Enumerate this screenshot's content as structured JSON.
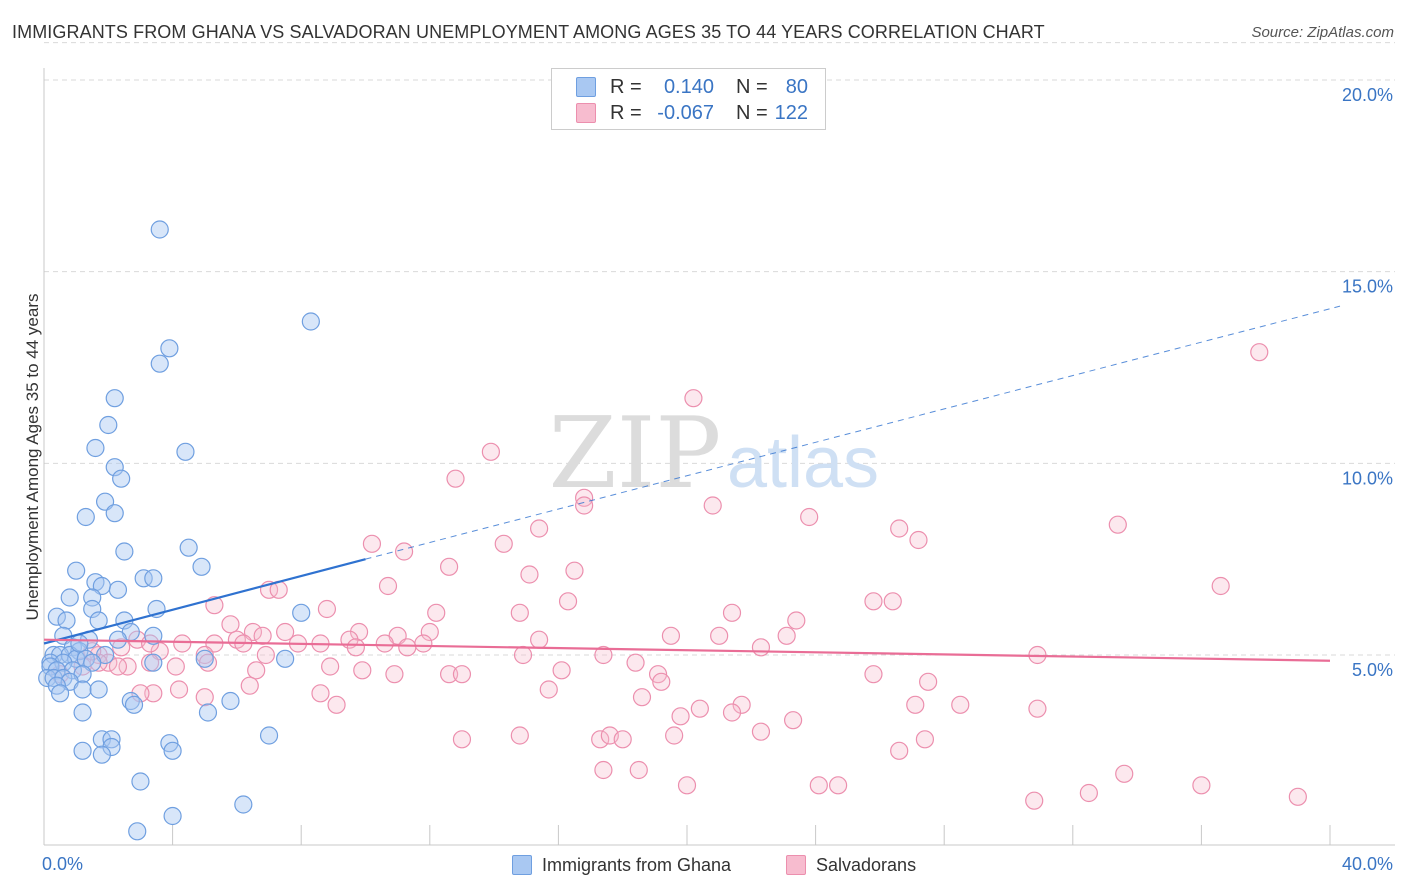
{
  "header": {
    "title": "IMMIGRANTS FROM GHANA VS SALVADORAN UNEMPLOYMENT AMONG AGES 35 TO 44 YEARS CORRELATION CHART",
    "source": "Source: ZipAtlas.com"
  },
  "watermark": {
    "zip": "ZIP",
    "atlas": "atlas"
  },
  "legend": {
    "rows": [
      {
        "r_label": "R =",
        "r_value": "0.140",
        "n_label": "N =",
        "n_value": "80"
      },
      {
        "r_label": "R =",
        "r_value": "-0.067",
        "n_label": "N =",
        "n_value": "122"
      }
    ],
    "series": [
      "Immigrants from Ghana",
      "Salvadorans"
    ]
  },
  "colors": {
    "ghana_fill": "#a9c8f2",
    "ghana_stroke": "#6f9fe0",
    "ghana_line": "#2f72d0",
    "salv_fill": "#f7bccf",
    "salv_stroke": "#ec8fae",
    "salv_line": "#e96d96",
    "value_text": "#3a75c4",
    "grid": "#d9d9d9"
  },
  "chart_data": {
    "type": "scatter",
    "title": "IMMIGRANTS FROM GHANA VS SALVADORAN UNEMPLOYMENT AMONG AGES 35 TO 44 YEARS CORRELATION CHART",
    "xlabel": "",
    "ylabel": "Unemployment Among Ages 35 to 44 years",
    "xlim": [
      0,
      40
    ],
    "ylim": [
      0,
      21
    ],
    "x_tick_labels": [
      {
        "value": 0,
        "label": "0.0%"
      },
      {
        "value": 40,
        "label": "40.0%"
      }
    ],
    "y_tick_labels": [
      {
        "value": 5,
        "label": "5.0%"
      },
      {
        "value": 10,
        "label": "10.0%"
      },
      {
        "value": 15,
        "label": "15.0%"
      },
      {
        "value": 20,
        "label": "20.0%"
      }
    ],
    "grid": true,
    "legend_position": "top-center",
    "series": [
      {
        "name": "Immigrants from Ghana",
        "r": 0.14,
        "n": 80,
        "trend": {
          "x0": 0,
          "y0": 5.3,
          "x1": 10,
          "y1": 7.5,
          "extend_to_x": 40,
          "extend_y": 14.1
        },
        "points": [
          [
            3.6,
            16.1
          ],
          [
            8.3,
            13.7
          ],
          [
            3.9,
            13.0
          ],
          [
            3.6,
            12.6
          ],
          [
            2.2,
            11.7
          ],
          [
            2.0,
            11.0
          ],
          [
            1.6,
            10.4
          ],
          [
            4.4,
            10.3
          ],
          [
            2.2,
            9.9
          ],
          [
            2.4,
            9.6
          ],
          [
            1.9,
            9.0
          ],
          [
            2.2,
            8.7
          ],
          [
            1.3,
            8.6
          ],
          [
            2.5,
            7.7
          ],
          [
            4.5,
            7.8
          ],
          [
            4.9,
            7.3
          ],
          [
            1.0,
            7.2
          ],
          [
            3.1,
            7.0
          ],
          [
            3.4,
            7.0
          ],
          [
            1.6,
            6.9
          ],
          [
            1.8,
            6.8
          ],
          [
            2.3,
            6.7
          ],
          [
            0.8,
            6.5
          ],
          [
            1.5,
            6.5
          ],
          [
            1.5,
            6.2
          ],
          [
            3.5,
            6.2
          ],
          [
            8.0,
            6.1
          ],
          [
            0.4,
            6.0
          ],
          [
            0.7,
            5.9
          ],
          [
            1.7,
            5.9
          ],
          [
            2.5,
            5.9
          ],
          [
            2.7,
            5.6
          ],
          [
            3.4,
            5.5
          ],
          [
            0.6,
            5.5
          ],
          [
            1.4,
            5.4
          ],
          [
            2.3,
            5.4
          ],
          [
            0.9,
            5.2
          ],
          [
            1.1,
            5.1
          ],
          [
            1.9,
            5.0
          ],
          [
            0.3,
            5.0
          ],
          [
            0.5,
            5.0
          ],
          [
            0.8,
            5.0
          ],
          [
            1.0,
            4.9
          ],
          [
            1.3,
            4.9
          ],
          [
            0.2,
            4.8
          ],
          [
            0.6,
            4.8
          ],
          [
            1.5,
            4.8
          ],
          [
            3.4,
            4.8
          ],
          [
            5.0,
            4.9
          ],
          [
            7.5,
            4.9
          ],
          [
            0.2,
            4.7
          ],
          [
            0.4,
            4.6
          ],
          [
            0.9,
            4.6
          ],
          [
            1.2,
            4.5
          ],
          [
            0.1,
            4.4
          ],
          [
            0.3,
            4.4
          ],
          [
            0.6,
            4.4
          ],
          [
            0.8,
            4.3
          ],
          [
            0.4,
            4.2
          ],
          [
            1.2,
            4.1
          ],
          [
            1.7,
            4.1
          ],
          [
            0.5,
            4.0
          ],
          [
            2.7,
            3.8
          ],
          [
            5.8,
            3.8
          ],
          [
            2.8,
            3.7
          ],
          [
            1.2,
            3.5
          ],
          [
            5.1,
            3.5
          ],
          [
            7.0,
            2.9
          ],
          [
            1.8,
            2.8
          ],
          [
            2.1,
            2.8
          ],
          [
            3.9,
            2.7
          ],
          [
            2.1,
            2.6
          ],
          [
            1.2,
            2.5
          ],
          [
            1.8,
            2.4
          ],
          [
            4.0,
            2.5
          ],
          [
            3.0,
            1.7
          ],
          [
            6.2,
            1.1
          ],
          [
            4.0,
            0.8
          ],
          [
            2.9,
            0.4
          ],
          [
            1.1,
            5.3
          ]
        ]
      },
      {
        "name": "Salvadorans",
        "r": -0.067,
        "n": 122,
        "trend": {
          "x0": 0,
          "y0": 5.4,
          "x1": 40,
          "y1": 4.85
        },
        "points": [
          [
            37.8,
            12.9
          ],
          [
            20.2,
            11.7
          ],
          [
            13.9,
            10.3
          ],
          [
            12.8,
            9.6
          ],
          [
            16.8,
            9.1
          ],
          [
            16.8,
            8.9
          ],
          [
            20.8,
            8.9
          ],
          [
            23.8,
            8.6
          ],
          [
            15.4,
            8.3
          ],
          [
            26.6,
            8.3
          ],
          [
            27.2,
            8.0
          ],
          [
            33.4,
            8.4
          ],
          [
            10.2,
            7.9
          ],
          [
            11.2,
            7.7
          ],
          [
            14.3,
            7.9
          ],
          [
            12.6,
            7.3
          ],
          [
            15.1,
            7.1
          ],
          [
            16.5,
            7.2
          ],
          [
            36.6,
            6.8
          ],
          [
            10.7,
            6.8
          ],
          [
            7.0,
            6.7
          ],
          [
            7.3,
            6.7
          ],
          [
            5.3,
            6.3
          ],
          [
            8.8,
            6.2
          ],
          [
            12.2,
            6.1
          ],
          [
            16.3,
            6.4
          ],
          [
            25.8,
            6.4
          ],
          [
            26.4,
            6.4
          ],
          [
            14.8,
            6.1
          ],
          [
            21.4,
            6.1
          ],
          [
            23.4,
            5.9
          ],
          [
            5.8,
            5.8
          ],
          [
            6.0,
            5.4
          ],
          [
            6.5,
            5.6
          ],
          [
            7.5,
            5.6
          ],
          [
            9.8,
            5.6
          ],
          [
            11.0,
            5.5
          ],
          [
            12.0,
            5.6
          ],
          [
            2.9,
            5.4
          ],
          [
            5.3,
            5.3
          ],
          [
            6.2,
            5.3
          ],
          [
            6.8,
            5.5
          ],
          [
            7.9,
            5.3
          ],
          [
            8.6,
            5.3
          ],
          [
            9.5,
            5.4
          ],
          [
            10.6,
            5.3
          ],
          [
            11.8,
            5.3
          ],
          [
            15.4,
            5.4
          ],
          [
            19.5,
            5.5
          ],
          [
            21.0,
            5.5
          ],
          [
            23.1,
            5.5
          ],
          [
            9.7,
            5.2
          ],
          [
            11.3,
            5.2
          ],
          [
            17.4,
            5.0
          ],
          [
            14.9,
            5.0
          ],
          [
            22.3,
            5.2
          ],
          [
            30.9,
            5.0
          ],
          [
            1.7,
            5.0
          ],
          [
            2.4,
            5.2
          ],
          [
            3.6,
            5.1
          ],
          [
            4.3,
            5.3
          ],
          [
            5.0,
            5.0
          ],
          [
            6.9,
            5.0
          ],
          [
            2.0,
            4.8
          ],
          [
            3.3,
            4.8
          ],
          [
            4.1,
            4.7
          ],
          [
            5.1,
            4.8
          ],
          [
            8.9,
            4.7
          ],
          [
            9.9,
            4.6
          ],
          [
            10.9,
            4.5
          ],
          [
            12.6,
            4.5
          ],
          [
            16.1,
            4.6
          ],
          [
            18.4,
            4.8
          ],
          [
            19.1,
            4.5
          ],
          [
            25.8,
            4.5
          ],
          [
            27.5,
            4.3
          ],
          [
            0.5,
            4.5
          ],
          [
            1.2,
            4.7
          ],
          [
            1.7,
            4.8
          ],
          [
            2.6,
            4.7
          ],
          [
            6.6,
            4.6
          ],
          [
            13.0,
            4.5
          ],
          [
            19.2,
            4.3
          ],
          [
            3.4,
            4.0
          ],
          [
            4.2,
            4.1
          ],
          [
            5.0,
            3.9
          ],
          [
            6.4,
            4.2
          ],
          [
            8.6,
            4.0
          ],
          [
            15.7,
            4.1
          ],
          [
            18.6,
            3.9
          ],
          [
            20.4,
            3.6
          ],
          [
            21.7,
            3.7
          ],
          [
            27.1,
            3.7
          ],
          [
            30.9,
            3.6
          ],
          [
            19.8,
            3.4
          ],
          [
            21.4,
            3.5
          ],
          [
            23.3,
            3.3
          ],
          [
            22.3,
            3.0
          ],
          [
            14.8,
            2.9
          ],
          [
            17.3,
            2.8
          ],
          [
            17.6,
            2.9
          ],
          [
            19.6,
            2.9
          ],
          [
            13.0,
            2.8
          ],
          [
            18.0,
            2.8
          ],
          [
            26.6,
            2.5
          ],
          [
            27.4,
            2.8
          ],
          [
            17.4,
            2.0
          ],
          [
            18.5,
            2.0
          ],
          [
            33.6,
            1.9
          ],
          [
            20.0,
            1.6
          ],
          [
            24.1,
            1.6
          ],
          [
            24.7,
            1.6
          ],
          [
            36.0,
            1.6
          ],
          [
            32.5,
            1.4
          ],
          [
            30.8,
            1.2
          ],
          [
            39.0,
            1.3
          ],
          [
            2.3,
            4.7
          ],
          [
            3.3,
            5.3
          ],
          [
            9.1,
            3.7
          ],
          [
            28.5,
            3.7
          ],
          [
            1.5,
            5.1
          ],
          [
            3.0,
            4.0
          ]
        ]
      }
    ]
  }
}
